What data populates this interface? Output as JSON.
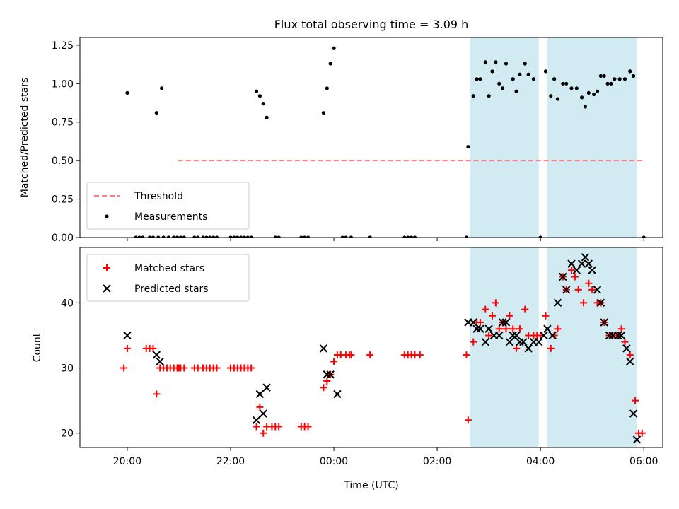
{
  "figure": {
    "title": "Flux total observing time = 3.09 h"
  },
  "colors": {
    "shade": "#add8e6",
    "threshold": "#ff7f7f",
    "measurement": "#000000",
    "matched": "#ff0000",
    "predicted": "#000000"
  },
  "chart_data": [
    {
      "type": "scatter",
      "ylabel": "Matched/Predicted stars",
      "ylim": [
        0,
        1.3
      ],
      "yticks": [
        "0.00",
        "0.25",
        "0.50",
        "0.75",
        "1.00",
        "1.25"
      ],
      "legend": {
        "placement": "lower-left",
        "entries": [
          "Threshold",
          "Measurements"
        ]
      },
      "threshold": {
        "name": "Threshold",
        "y": 0.5,
        "x_start": "20:59",
        "x_end": "05:59"
      },
      "shaded_intervals": [
        [
          "02:38",
          "03:58"
        ],
        [
          "04:08",
          "05:52"
        ]
      ],
      "series": [
        {
          "name": "Measurements",
          "points": [
            [
              "20:58",
              0
            ],
            [
              "21:02",
              0
            ],
            [
              "21:06",
              0
            ],
            [
              "21:40",
              0
            ],
            [
              "21:44",
              0
            ],
            [
              "20:00",
              0.94
            ],
            [
              "20:34",
              0.81
            ],
            [
              "20:40",
              0.97
            ],
            [
              "20:10",
              0
            ],
            [
              "20:14",
              0
            ],
            [
              "20:18",
              0
            ],
            [
              "20:26",
              0
            ],
            [
              "20:30",
              0
            ],
            [
              "20:36",
              0
            ],
            [
              "20:42",
              0
            ],
            [
              "20:48",
              0
            ],
            [
              "20:54",
              0
            ],
            [
              "21:18",
              0
            ],
            [
              "21:22",
              0
            ],
            [
              "21:28",
              0
            ],
            [
              "21:32",
              0
            ],
            [
              "21:36",
              0
            ],
            [
              "22:00",
              0
            ],
            [
              "22:04",
              0
            ],
            [
              "22:08",
              0
            ],
            [
              "22:12",
              0
            ],
            [
              "22:16",
              0
            ],
            [
              "22:20",
              0
            ],
            [
              "22:24",
              0
            ],
            [
              "22:30",
              0.95
            ],
            [
              "22:34",
              0.92
            ],
            [
              "22:38",
              0.87
            ],
            [
              "22:42",
              0.78
            ],
            [
              "22:52",
              0
            ],
            [
              "22:56",
              0
            ],
            [
              "23:22",
              0
            ],
            [
              "23:26",
              0
            ],
            [
              "23:30",
              0
            ],
            [
              "23:48",
              0.81
            ],
            [
              "23:52",
              0.97
            ],
            [
              "23:56",
              1.13
            ],
            [
              "00:00",
              1.23
            ],
            [
              "00:10",
              0
            ],
            [
              "00:14",
              0
            ],
            [
              "00:20",
              0
            ],
            [
              "00:42",
              0
            ],
            [
              "01:22",
              0
            ],
            [
              "01:26",
              0
            ],
            [
              "01:30",
              0
            ],
            [
              "01:34",
              0
            ],
            [
              "02:34",
              0
            ],
            [
              "02:36",
              0.59
            ],
            [
              "02:42",
              0.92
            ],
            [
              "02:46",
              1.03
            ],
            [
              "02:50",
              1.03
            ],
            [
              "02:56",
              1.14
            ],
            [
              "03:00",
              0.92
            ],
            [
              "03:04",
              1.08
            ],
            [
              "03:08",
              1.14
            ],
            [
              "03:12",
              1.0
            ],
            [
              "03:16",
              0.97
            ],
            [
              "03:20",
              1.13
            ],
            [
              "03:28",
              1.03
            ],
            [
              "03:32",
              0.95
            ],
            [
              "03:36",
              1.06
            ],
            [
              "03:42",
              1.13
            ],
            [
              "03:46",
              1.06
            ],
            [
              "03:52",
              1.03
            ],
            [
              "04:00",
              0
            ],
            [
              "04:06",
              1.08
            ],
            [
              "04:12",
              0.92
            ],
            [
              "04:16",
              1.03
            ],
            [
              "04:20",
              0.9
            ],
            [
              "04:26",
              1.0
            ],
            [
              "04:30",
              1.0
            ],
            [
              "04:36",
              0.97
            ],
            [
              "04:42",
              0.97
            ],
            [
              "04:48",
              0.91
            ],
            [
              "04:52",
              0.85
            ],
            [
              "04:56",
              0.94
            ],
            [
              "05:02",
              0.93
            ],
            [
              "05:06",
              0.95
            ],
            [
              "05:10",
              1.05
            ],
            [
              "05:14",
              1.05
            ],
            [
              "05:18",
              1.0
            ],
            [
              "05:22",
              1.0
            ],
            [
              "05:26",
              1.03
            ],
            [
              "05:32",
              1.03
            ],
            [
              "05:38",
              1.03
            ],
            [
              "05:44",
              1.08
            ],
            [
              "05:48",
              1.05
            ],
            [
              "06:00",
              0
            ]
          ]
        }
      ]
    },
    {
      "type": "scatter",
      "xlabel": "Time (UTC)",
      "ylabel": "Count",
      "ylim": [
        17.8,
        48.5
      ],
      "xlim": [
        "19:05",
        "06:22"
      ],
      "xticks": [
        "20:00",
        "22:00",
        "00:00",
        "02:00",
        "04:00",
        "06:00"
      ],
      "yticks": [
        "20",
        "30",
        "40"
      ],
      "legend": {
        "placement": "upper-left",
        "entries": [
          "Matched stars",
          "Predicted stars"
        ]
      },
      "shaded_intervals": [
        [
          "02:38",
          "03:58"
        ],
        [
          "04:08",
          "05:52"
        ]
      ],
      "series": [
        {
          "name": "Matched stars",
          "marker": "+",
          "points": [
            [
              "20:58",
              30
            ],
            [
              "21:02",
              30
            ],
            [
              "21:06",
              30
            ],
            [
              "19:56",
              30
            ],
            [
              "20:00",
              33
            ],
            [
              "20:22",
              33
            ],
            [
              "20:26",
              33
            ],
            [
              "20:30",
              33
            ],
            [
              "20:34",
              26
            ],
            [
              "20:38",
              30
            ],
            [
              "20:42",
              30
            ],
            [
              "20:46",
              30
            ],
            [
              "20:50",
              30
            ],
            [
              "20:54",
              30
            ],
            [
              "21:00",
              30
            ],
            [
              "21:18",
              30
            ],
            [
              "21:22",
              30
            ],
            [
              "21:28",
              30
            ],
            [
              "21:32",
              30
            ],
            [
              "21:36",
              30
            ],
            [
              "21:40",
              30
            ],
            [
              "21:44",
              30
            ],
            [
              "22:00",
              30
            ],
            [
              "22:04",
              30
            ],
            [
              "22:08",
              30
            ],
            [
              "22:12",
              30
            ],
            [
              "22:16",
              30
            ],
            [
              "22:20",
              30
            ],
            [
              "22:24",
              30
            ],
            [
              "22:30",
              21
            ],
            [
              "22:34",
              24
            ],
            [
              "22:38",
              20
            ],
            [
              "22:42",
              21
            ],
            [
              "22:48",
              21
            ],
            [
              "22:52",
              21
            ],
            [
              "22:56",
              21
            ],
            [
              "23:22",
              21
            ],
            [
              "23:26",
              21
            ],
            [
              "23:30",
              21
            ],
            [
              "23:48",
              27
            ],
            [
              "23:52",
              28
            ],
            [
              "23:56",
              29
            ],
            [
              "00:00",
              31
            ],
            [
              "00:04",
              32
            ],
            [
              "00:08",
              32
            ],
            [
              "00:14",
              32
            ],
            [
              "00:18",
              32
            ],
            [
              "00:20",
              32
            ],
            [
              "00:42",
              32
            ],
            [
              "01:22",
              32
            ],
            [
              "01:26",
              32
            ],
            [
              "01:30",
              32
            ],
            [
              "01:34",
              32
            ],
            [
              "01:40",
              32
            ],
            [
              "02:34",
              32
            ],
            [
              "02:36",
              22
            ],
            [
              "02:42",
              34
            ],
            [
              "02:46",
              37
            ],
            [
              "02:50",
              37
            ],
            [
              "02:56",
              39
            ],
            [
              "03:00",
              35
            ],
            [
              "03:04",
              38
            ],
            [
              "03:08",
              40
            ],
            [
              "03:12",
              36
            ],
            [
              "03:16",
              37
            ],
            [
              "03:20",
              36
            ],
            [
              "03:24",
              38
            ],
            [
              "03:28",
              36
            ],
            [
              "03:32",
              33
            ],
            [
              "03:36",
              36
            ],
            [
              "03:42",
              39
            ],
            [
              "03:46",
              35
            ],
            [
              "03:52",
              35
            ],
            [
              "03:56",
              35
            ],
            [
              "04:00",
              35
            ],
            [
              "04:06",
              38
            ],
            [
              "04:12",
              33
            ],
            [
              "04:16",
              35
            ],
            [
              "04:20",
              36
            ],
            [
              "04:26",
              44
            ],
            [
              "04:30",
              42
            ],
            [
              "04:36",
              45
            ],
            [
              "04:40",
              44
            ],
            [
              "04:44",
              42
            ],
            [
              "04:50",
              40
            ],
            [
              "04:56",
              43
            ],
            [
              "05:00",
              42
            ],
            [
              "05:06",
              40
            ],
            [
              "05:10",
              40
            ],
            [
              "05:14",
              37
            ],
            [
              "05:20",
              35
            ],
            [
              "05:24",
              35
            ],
            [
              "05:30",
              35
            ],
            [
              "05:34",
              36
            ],
            [
              "05:38",
              34
            ],
            [
              "05:44",
              32
            ],
            [
              "05:50",
              25
            ],
            [
              "05:54",
              20
            ],
            [
              "05:58",
              20
            ]
          ]
        },
        {
          "name": "Predicted stars",
          "marker": "x",
          "points": [
            [
              "20:00",
              35
            ],
            [
              "20:34",
              32
            ],
            [
              "20:38",
              31
            ],
            [
              "22:30",
              22
            ],
            [
              "22:34",
              26
            ],
            [
              "22:38",
              23
            ],
            [
              "22:42",
              27
            ],
            [
              "23:48",
              33
            ],
            [
              "23:52",
              29
            ],
            [
              "23:56",
              29
            ],
            [
              "00:04",
              26
            ],
            [
              "02:36",
              37
            ],
            [
              "02:42",
              37
            ],
            [
              "02:46",
              36
            ],
            [
              "02:50",
              36
            ],
            [
              "02:56",
              34
            ],
            [
              "03:00",
              36
            ],
            [
              "03:06",
              35
            ],
            [
              "03:12",
              35
            ],
            [
              "03:16",
              37
            ],
            [
              "03:20",
              37
            ],
            [
              "03:24",
              34
            ],
            [
              "03:28",
              35
            ],
            [
              "03:32",
              35
            ],
            [
              "03:36",
              34
            ],
            [
              "03:40",
              34
            ],
            [
              "03:46",
              33
            ],
            [
              "03:52",
              34
            ],
            [
              "03:58",
              34
            ],
            [
              "04:04",
              35
            ],
            [
              "04:08",
              36
            ],
            [
              "04:14",
              35
            ],
            [
              "04:20",
              40
            ],
            [
              "04:26",
              44
            ],
            [
              "04:30",
              42
            ],
            [
              "04:36",
              46
            ],
            [
              "04:42",
              45
            ],
            [
              "04:48",
              46
            ],
            [
              "04:52",
              47
            ],
            [
              "04:56",
              46
            ],
            [
              "05:00",
              45
            ],
            [
              "05:06",
              42
            ],
            [
              "05:10",
              40
            ],
            [
              "05:14",
              37
            ],
            [
              "05:20",
              35
            ],
            [
              "05:24",
              35
            ],
            [
              "05:30",
              35
            ],
            [
              "05:34",
              35
            ],
            [
              "05:40",
              33
            ],
            [
              "05:44",
              31
            ],
            [
              "05:48",
              23
            ],
            [
              "05:52",
              19
            ]
          ]
        }
      ]
    }
  ]
}
